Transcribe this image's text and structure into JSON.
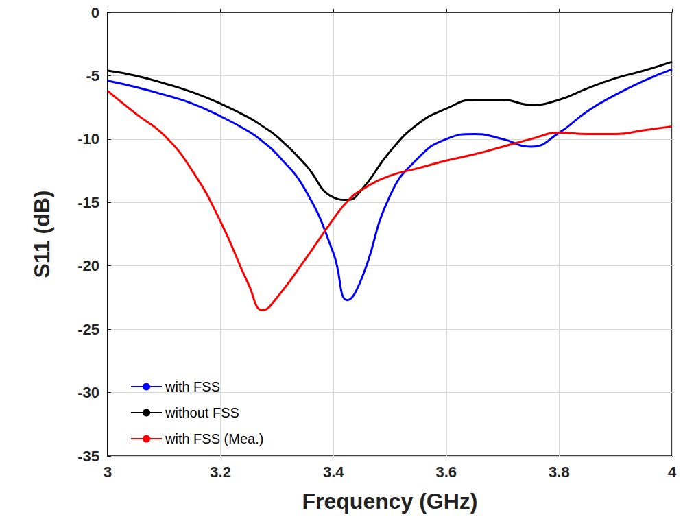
{
  "chart_data": {
    "type": "line",
    "x_label": "Frequency (GHz)",
    "y_label": "S11 (dB)",
    "x": [
      3,
      3.05,
      3.1,
      3.15,
      3.2,
      3.25,
      3.275,
      3.3,
      3.35,
      3.4,
      3.425,
      3.45,
      3.5,
      3.55,
      3.6,
      3.65,
      3.7,
      3.75,
      3.8,
      3.85,
      3.9,
      3.95,
      4
    ],
    "series": [
      {
        "name": "with FSS",
        "color": "#0000ff",
        "values": [
          -5.4,
          -5.9,
          -6.5,
          -7.2,
          -8.2,
          -9.4,
          -10.2,
          -11.2,
          -14.0,
          -19.0,
          -22.7,
          -21.0,
          -14.5,
          -11.5,
          -10.0,
          -9.6,
          -10.0,
          -10.6,
          -9.5,
          -7.8,
          -6.5,
          -5.4,
          -4.5
        ]
      },
      {
        "name": "without FSS",
        "color": "#000000",
        "values": [
          -4.6,
          -5.0,
          -5.6,
          -6.3,
          -7.2,
          -8.3,
          -9.0,
          -9.8,
          -12.0,
          -14.6,
          -14.8,
          -14.0,
          -11.0,
          -8.8,
          -7.6,
          -6.9,
          -6.9,
          -7.3,
          -6.9,
          -6.0,
          -5.2,
          -4.6,
          -3.9
        ]
      },
      {
        "name": "with FSS (Mea.)",
        "color": "#ff0000",
        "values": [
          -6.2,
          -8.0,
          -9.7,
          -12.5,
          -16.5,
          -21.5,
          -23.5,
          -22.5,
          -19.5,
          -16.3,
          -14.9,
          -14.0,
          -12.9,
          -12.3,
          -11.7,
          -11.2,
          -10.6,
          -10.0,
          -9.5,
          -9.6,
          -9.6,
          -9.3,
          -9.0
        ]
      }
    ],
    "xlim": [
      3,
      4
    ],
    "xticks": [
      3,
      3.2,
      3.4,
      3.6,
      3.8,
      4
    ],
    "ylim": [
      -35,
      0
    ],
    "yticks": [
      -35,
      -30,
      -25,
      -20,
      -15,
      -10,
      -5,
      0
    ],
    "grid": true,
    "legend": "lower left"
  }
}
